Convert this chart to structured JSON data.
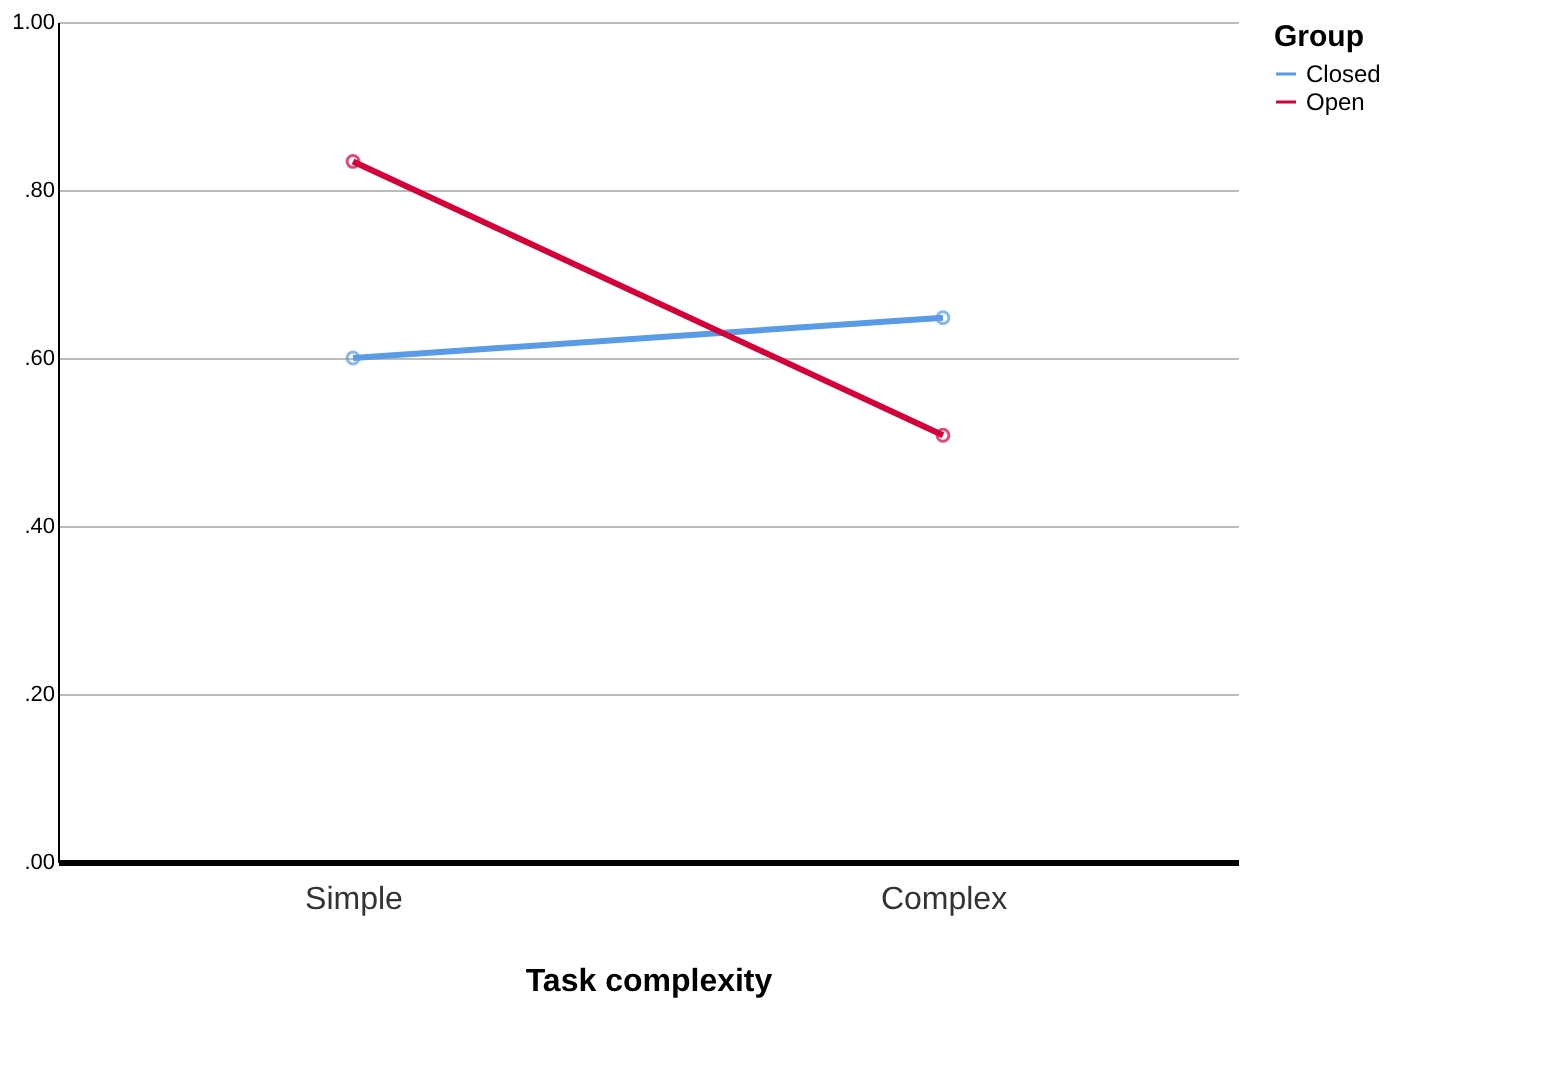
{
  "chart_data": {
    "type": "line",
    "xlabel": "Task complexity",
    "legend_title": "Group",
    "categories": [
      "Simple",
      "Complex"
    ],
    "series": [
      {
        "name": "Closed",
        "color": "#5a9be6",
        "values": [
          0.6,
          0.648
        ]
      },
      {
        "name": "Open",
        "color": "#d5003a",
        "values": [
          0.834,
          0.508
        ]
      }
    ],
    "ylim": [
      0,
      1
    ],
    "yticks": [
      {
        "value": 0,
        "label": ".00"
      },
      {
        "value": 0.2,
        "label": ".20"
      },
      {
        "value": 0.4,
        "label": ".40"
      },
      {
        "value": 0.6,
        "label": ".60"
      },
      {
        "value": 0.8,
        "label": ".80"
      },
      {
        "value": 1,
        "label": "1.00"
      }
    ],
    "grid": "y",
    "legend": "top right",
    "marker": "circle",
    "line_style": "solid"
  }
}
